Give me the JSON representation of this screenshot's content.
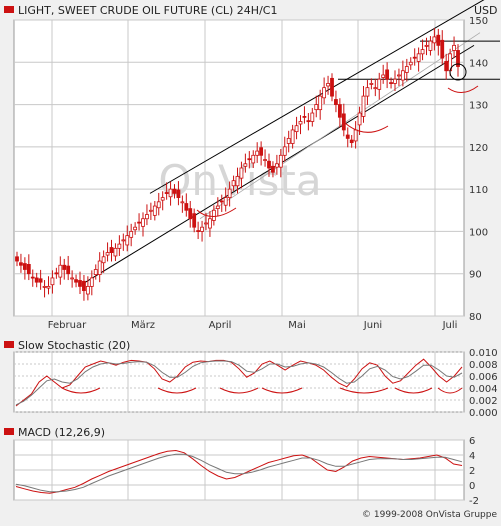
{
  "colors": {
    "up": "#cc1111",
    "down": "#cc1111",
    "grid": "#c8c8c8",
    "panel": "#ffffff",
    "channel": "#000000",
    "sig": "#888888"
  },
  "watermark": "OnVista",
  "copyright": "© 1999-2008 OnVista Gruppe",
  "chart_data": [
    {
      "type": "candlestick",
      "title": "LIGHT, SWEET CRUDE OIL FUTURE (CL) 24H/C1",
      "unit": "USD",
      "ylim": [
        80,
        150
      ],
      "yticks": [
        80,
        90,
        100,
        110,
        120,
        130,
        140,
        150
      ],
      "xticklabels": [
        "Februar",
        "März",
        "April",
        "Mai",
        "Juni",
        "Juli"
      ],
      "grid": true,
      "series_close": [
        93,
        92,
        91,
        90,
        89,
        88,
        88,
        87,
        87,
        89,
        90,
        92,
        91,
        90,
        89,
        88,
        87,
        86,
        87,
        89,
        91,
        93,
        94,
        95,
        95,
        96,
        97,
        98,
        99,
        100,
        101,
        102,
        103,
        104,
        105,
        106,
        107,
        108,
        109,
        110,
        109,
        108,
        107,
        105,
        103,
        101,
        100,
        101,
        102,
        103,
        105,
        106,
        107,
        108,
        110,
        112,
        113,
        115,
        116,
        117,
        118,
        119,
        118,
        117,
        115,
        114,
        116,
        118,
        120,
        122,
        124,
        125,
        126,
        127,
        126,
        128,
        130,
        132,
        134,
        135,
        132,
        130,
        127,
        124,
        122,
        121,
        124,
        128,
        132,
        134,
        135,
        134,
        136,
        137,
        136,
        135,
        136,
        137,
        138,
        139,
        140,
        141,
        142,
        143,
        144,
        145,
        146,
        144,
        141,
        138,
        142,
        144,
        139
      ]
    },
    {
      "type": "line",
      "title": "Slow Stochastic (20)",
      "ylim": [
        0,
        0.01
      ],
      "yticks": [
        "0.000",
        "0.002",
        "0.004",
        "0.006",
        "0.008",
        "0.010"
      ],
      "series": [
        {
          "values": [
            0.001,
            0.002,
            0.003,
            0.005,
            0.006,
            0.005,
            0.004,
            0.0045,
            0.006,
            0.0075,
            0.008,
            0.0085,
            0.0082,
            0.0078,
            0.0083,
            0.0086,
            0.0085,
            0.0083,
            0.0072,
            0.0055,
            0.005,
            0.006,
            0.0075,
            0.0083,
            0.0085,
            0.0084,
            0.0086,
            0.0086,
            0.0083,
            0.0072,
            0.0058,
            0.0065,
            0.008,
            0.0085,
            0.0078,
            0.007,
            0.0078,
            0.0085,
            0.0082,
            0.0078,
            0.007,
            0.0058,
            0.0048,
            0.0042,
            0.0055,
            0.0072,
            0.0082,
            0.0078,
            0.006,
            0.0048,
            0.0052,
            0.0065,
            0.0078,
            0.0088,
            0.0075,
            0.006,
            0.005,
            0.006,
            0.0075
          ]
        },
        {
          "values": [
            0.0012,
            0.0018,
            0.0028,
            0.004,
            0.0052,
            0.0055,
            0.005,
            0.0048,
            0.0055,
            0.0067,
            0.0075,
            0.008,
            0.0082,
            0.008,
            0.0081,
            0.0083,
            0.0084,
            0.0083,
            0.0077,
            0.0066,
            0.0058,
            0.0058,
            0.0066,
            0.0076,
            0.0082,
            0.0084,
            0.0085,
            0.0085,
            0.0084,
            0.0078,
            0.0068,
            0.0066,
            0.0072,
            0.008,
            0.008,
            0.0075,
            0.0076,
            0.008,
            0.0082,
            0.008,
            0.0075,
            0.0066,
            0.0056,
            0.0048,
            0.005,
            0.006,
            0.0072,
            0.0076,
            0.007,
            0.0059,
            0.0055,
            0.0059,
            0.0068,
            0.0078,
            0.0078,
            0.007,
            0.006,
            0.0058,
            0.0065
          ]
        }
      ]
    },
    {
      "type": "line",
      "title": "MACD (12,26,9)",
      "ylim": [
        -2,
        6
      ],
      "yticks": [
        "6",
        "4",
        "2",
        "0",
        "-2"
      ],
      "series": [
        {
          "values": [
            -0.2,
            -0.5,
            -0.8,
            -1.0,
            -1.1,
            -0.9,
            -0.6,
            -0.3,
            0.2,
            0.8,
            1.3,
            1.8,
            2.2,
            2.6,
            3.0,
            3.4,
            3.8,
            4.2,
            4.5,
            4.6,
            4.3,
            3.5,
            2.6,
            1.8,
            1.2,
            0.8,
            1.0,
            1.5,
            2.0,
            2.5,
            3.0,
            3.3,
            3.6,
            3.9,
            4.0,
            3.6,
            2.8,
            2.0,
            1.8,
            2.4,
            3.2,
            3.6,
            3.8,
            3.7,
            3.6,
            3.5,
            3.4,
            3.5,
            3.6,
            3.8,
            4.0,
            3.6,
            2.8,
            2.6
          ]
        },
        {
          "values": [
            0.1,
            -0.1,
            -0.4,
            -0.7,
            -0.9,
            -0.9,
            -0.8,
            -0.6,
            -0.3,
            0.2,
            0.7,
            1.2,
            1.6,
            2.0,
            2.4,
            2.8,
            3.2,
            3.6,
            3.9,
            4.1,
            4.1,
            3.8,
            3.3,
            2.7,
            2.2,
            1.7,
            1.5,
            1.5,
            1.7,
            2.0,
            2.4,
            2.7,
            3.0,
            3.3,
            3.6,
            3.6,
            3.3,
            2.8,
            2.5,
            2.5,
            2.8,
            3.1,
            3.4,
            3.5,
            3.5,
            3.5,
            3.4,
            3.4,
            3.5,
            3.6,
            3.7,
            3.7,
            3.4,
            3.1
          ]
        }
      ]
    }
  ]
}
